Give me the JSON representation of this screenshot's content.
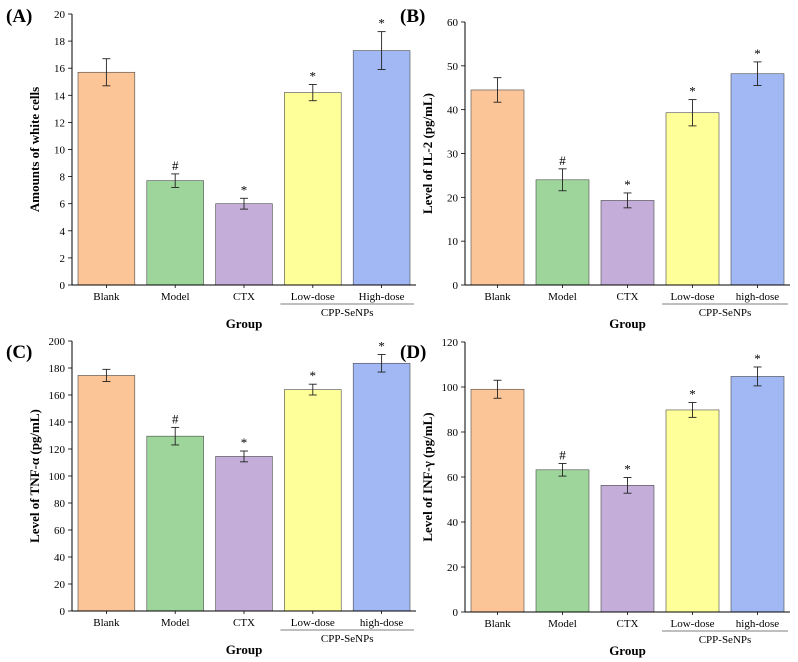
{
  "colors": {
    "blank": "#FCC597",
    "model": "#9DD59A",
    "ctx": "#C4AED9",
    "low": "#FFFF9A",
    "high": "#A1B8F4",
    "axis": "#000000"
  },
  "chart_data": [
    {
      "type": "bar",
      "panel": "(A)",
      "categories": [
        "Blank",
        "Model",
        "CTX",
        "Low-dose",
        "High-dose"
      ],
      "group_label": "CPP-SeNPs",
      "xlabel": "Group",
      "ylabel": "Amounts of white cells",
      "ylim": [
        0,
        20
      ],
      "yticks": [
        0,
        2,
        4,
        6,
        8,
        10,
        12,
        14,
        16,
        18,
        20
      ],
      "values": [
        15.7,
        7.7,
        6.0,
        14.2,
        17.3
      ],
      "errors": [
        1.0,
        0.5,
        0.4,
        0.6,
        1.4
      ],
      "markers": [
        "",
        "#",
        "*",
        "*",
        "*"
      ]
    },
    {
      "type": "bar",
      "panel": "(B)",
      "categories": [
        "Blank",
        "Model",
        "CTX",
        "Low-dose",
        "high-dose"
      ],
      "group_label": "CPP-SeNPs",
      "xlabel": "Group",
      "ylabel": "Level of IL-2 (pg/mL)",
      "ylim": [
        0,
        60
      ],
      "yticks": [
        0,
        10,
        20,
        30,
        40,
        50,
        60
      ],
      "values": [
        44.5,
        24.0,
        19.3,
        39.3,
        48.2
      ],
      "errors": [
        2.8,
        2.5,
        1.7,
        3.0,
        2.7
      ],
      "markers": [
        "",
        "#",
        "*",
        "*",
        "*"
      ]
    },
    {
      "type": "bar",
      "panel": "(C)",
      "categories": [
        "Blank",
        "Model",
        "CTX",
        "Low-dose",
        "high-dose"
      ],
      "group_label": "CPP-SeNPs",
      "xlabel": "Group",
      "ylabel": "Level of TNF-α (pg/mL)",
      "ylim": [
        0,
        200
      ],
      "yticks": [
        0,
        20,
        40,
        60,
        80,
        100,
        120,
        140,
        160,
        180,
        200
      ],
      "values": [
        174.5,
        129.5,
        114.5,
        164.0,
        183.5
      ],
      "errors": [
        4.5,
        6.5,
        4.0,
        4.0,
        6.5
      ],
      "markers": [
        "",
        "#",
        "*",
        "*",
        "*"
      ]
    },
    {
      "type": "bar",
      "panel": "(D)",
      "categories": [
        "Blank",
        "Model",
        "CTX",
        "Low-dose",
        "high-dose"
      ],
      "group_label": "CPP-SeNPs",
      "xlabel": "Group",
      "ylabel": "Level of INF-γ (pg/mL)",
      "ylim": [
        0,
        120
      ],
      "yticks": [
        0,
        20,
        40,
        60,
        80,
        100,
        120
      ],
      "values": [
        99.0,
        63.2,
        56.3,
        89.8,
        104.7
      ],
      "errors": [
        4.0,
        2.8,
        3.5,
        3.3,
        4.2
      ],
      "markers": [
        "",
        "#",
        "*",
        "*",
        "*"
      ]
    }
  ]
}
